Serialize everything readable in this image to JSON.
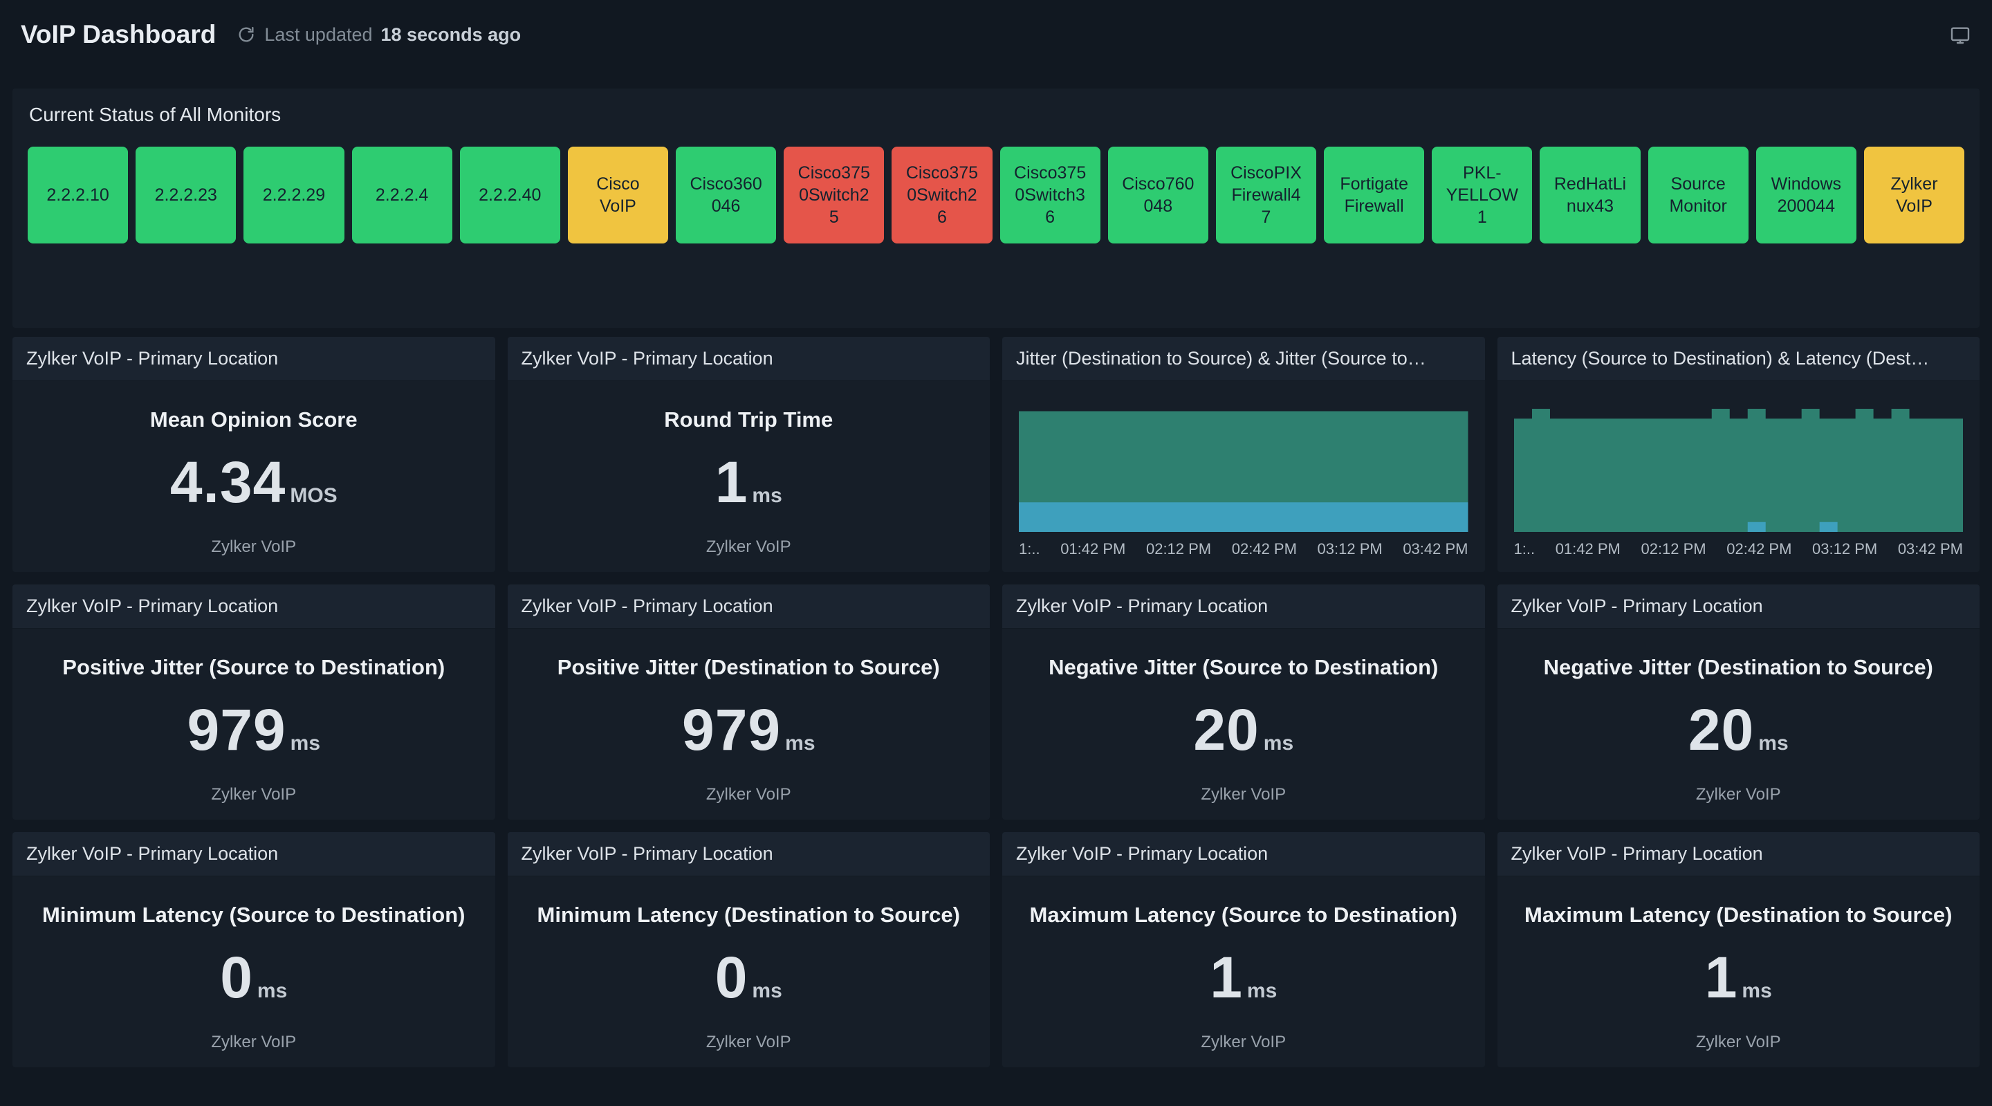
{
  "colors": {
    "background": "#111821",
    "card": "#161e28",
    "card_header": "#1b2430",
    "status": {
      "up": "#2ecc71",
      "warn": "#f0c440",
      "down": "#e5554a"
    },
    "chart_teal": "#2e8070",
    "chart_blue": "#3ea0bd"
  },
  "topbar": {
    "title": "VoIP Dashboard",
    "last_updated_prefix": "Last updated",
    "last_updated_value": "18 seconds ago",
    "refresh_icon": "refresh-icon",
    "display_icon": "display-monitor-icon"
  },
  "status_panel": {
    "title": "Current Status of All Monitors",
    "monitors": [
      {
        "label": "2.2.2.10",
        "status": "up"
      },
      {
        "label": "2.2.2.23",
        "status": "up"
      },
      {
        "label": "2.2.2.29",
        "status": "up"
      },
      {
        "label": "2.2.2.4",
        "status": "up"
      },
      {
        "label": "2.2.2.40",
        "status": "up"
      },
      {
        "label": "Cisco\nVoIP",
        "status": "warn"
      },
      {
        "label": "Cisco360\n046",
        "status": "up"
      },
      {
        "label": "Cisco375\n0Switch2\n5",
        "status": "down"
      },
      {
        "label": "Cisco375\n0Switch2\n6",
        "status": "down"
      },
      {
        "label": "Cisco375\n0Switch3\n6",
        "status": "up"
      },
      {
        "label": "Cisco760\n048",
        "status": "up"
      },
      {
        "label": "CiscoPIX\nFirewall4\n7",
        "status": "up"
      },
      {
        "label": "Fortigate\nFirewall",
        "status": "up"
      },
      {
        "label": "PKL-\nYELLOW\n1",
        "status": "up"
      },
      {
        "label": "RedHatLi\nnux43",
        "status": "up"
      },
      {
        "label": "Source\nMonitor",
        "status": "up"
      },
      {
        "label": "Windows\n200044",
        "status": "up"
      },
      {
        "label": "Zylker\nVoIP",
        "status": "warn"
      }
    ]
  },
  "cards": [
    {
      "kind": "metric",
      "header": "Zylker VoIP - Primary Location",
      "title": "Mean Opinion Score",
      "value": "4.34",
      "unit": "MOS",
      "footer": "Zylker VoIP"
    },
    {
      "kind": "metric",
      "header": "Zylker VoIP - Primary Location",
      "title": "Round Trip Time",
      "value": "1",
      "unit": "ms",
      "footer": "Zylker VoIP"
    },
    {
      "kind": "chart",
      "header": "Jitter (Destination to Source) & Jitter (Source to…",
      "chart": 0
    },
    {
      "kind": "chart",
      "header": "Latency (Source to Destination) & Latency (Dest…",
      "chart": 1
    },
    {
      "kind": "metric",
      "header": "Zylker VoIP - Primary Location",
      "title": "Positive Jitter (Source to Destination)",
      "value": "979",
      "unit": "ms",
      "footer": "Zylker VoIP"
    },
    {
      "kind": "metric",
      "header": "Zylker VoIP - Primary Location",
      "title": "Positive Jitter (Destination to Source)",
      "value": "979",
      "unit": "ms",
      "footer": "Zylker VoIP"
    },
    {
      "kind": "metric",
      "header": "Zylker VoIP - Primary Location",
      "title": "Negative Jitter (Source to Destination)",
      "value": "20",
      "unit": "ms",
      "footer": "Zylker VoIP"
    },
    {
      "kind": "metric",
      "header": "Zylker VoIP - Primary Location",
      "title": "Negative Jitter (Destination to Source)",
      "value": "20",
      "unit": "ms",
      "footer": "Zylker VoIP"
    },
    {
      "kind": "metric",
      "header": "Zylker VoIP - Primary Location",
      "title": "Minimum Latency (Source to Destination)",
      "value": "0",
      "unit": "ms",
      "footer": "Zylker VoIP"
    },
    {
      "kind": "metric",
      "header": "Zylker VoIP - Primary Location",
      "title": "Minimum Latency (Destination to Source)",
      "value": "0",
      "unit": "ms",
      "footer": "Zylker VoIP"
    },
    {
      "kind": "metric",
      "header": "Zylker VoIP - Primary Location",
      "title": "Maximum Latency (Source to Destination)",
      "value": "1",
      "unit": "ms",
      "footer": "Zylker VoIP"
    },
    {
      "kind": "metric",
      "header": "Zylker VoIP - Primary Location",
      "title": "Maximum Latency (Destination to Source)",
      "value": "1",
      "unit": "ms",
      "footer": "Zylker VoIP"
    }
  ],
  "chart_data": [
    {
      "type": "area",
      "title": "Jitter (Destination to Source) & Jitter (Source to…)",
      "x_ticks": [
        "1:..",
        "01:42 PM",
        "02:12 PM",
        "02:42 PM",
        "03:12 PM",
        "03:42 PM"
      ],
      "ylim": [
        0,
        100
      ],
      "grid": false,
      "legend": "none",
      "series": [
        {
          "name": "Jitter (Destination to Source)",
          "color": "#2e8070",
          "values": [
            98,
            98,
            98,
            98,
            98,
            98,
            98,
            98,
            98,
            98,
            98,
            98,
            98,
            98,
            98,
            98,
            98,
            98,
            98,
            98,
            98,
            98,
            98,
            98,
            98
          ]
        },
        {
          "name": "Jitter (Source to Destination)",
          "color": "#3ea0bd",
          "values": [
            24,
            24,
            24,
            24,
            24,
            24,
            24,
            24,
            24,
            24,
            24,
            24,
            24,
            24,
            24,
            24,
            24,
            24,
            24,
            24,
            24,
            24,
            24,
            24,
            24
          ]
        }
      ]
    },
    {
      "type": "area",
      "title": "Latency (Source to Destination) & Latency (Dest…)",
      "x_ticks": [
        "1:..",
        "01:42 PM",
        "02:12 PM",
        "02:42 PM",
        "03:12 PM",
        "03:42 PM"
      ],
      "ylim": [
        0,
        100
      ],
      "grid": false,
      "legend": "none",
      "series": [
        {
          "name": "Latency (Source to Destination)",
          "color": "#2e8070",
          "values": [
            92,
            100,
            92,
            92,
            92,
            92,
            92,
            92,
            92,
            92,
            92,
            100,
            92,
            100,
            92,
            92,
            100,
            92,
            92,
            100,
            92,
            100,
            92,
            92,
            92
          ]
        },
        {
          "name": "Latency (Destination to Source)",
          "color": "#3ea0bd",
          "values": [
            0,
            0,
            0,
            0,
            0,
            0,
            0,
            0,
            0,
            0,
            0,
            0,
            0,
            8,
            0,
            0,
            0,
            8,
            0,
            0,
            0,
            0,
            0,
            0,
            0
          ]
        }
      ]
    }
  ]
}
